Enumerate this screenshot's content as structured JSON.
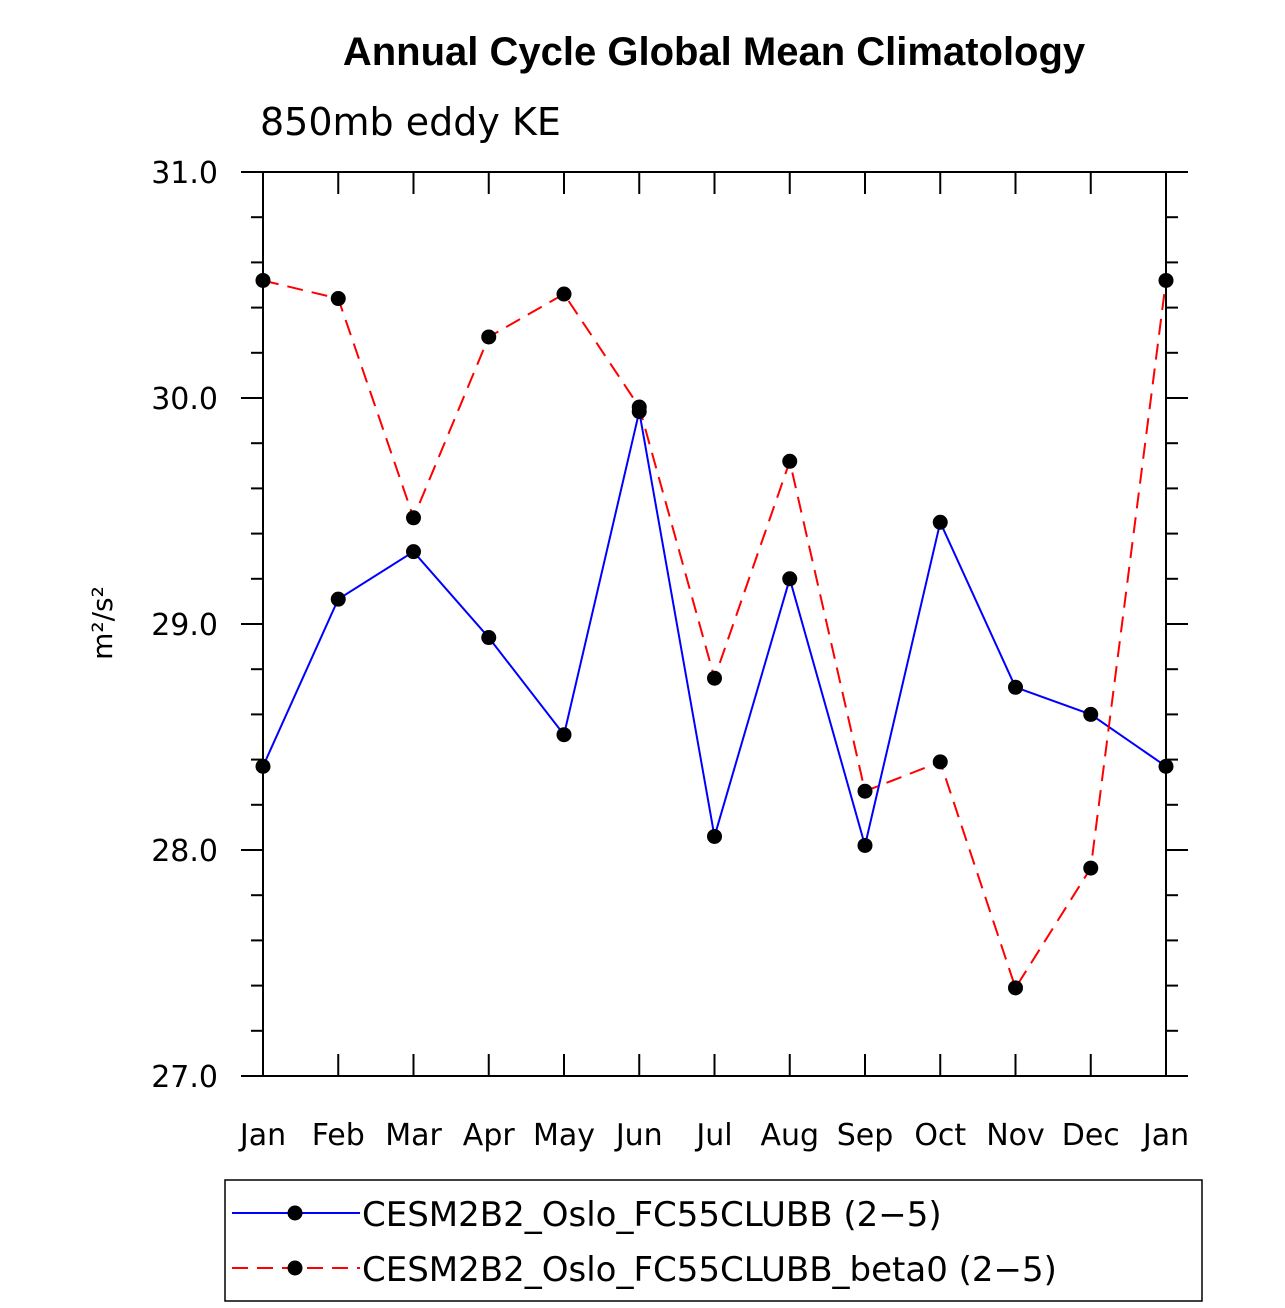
{
  "chart_data": {
    "type": "line",
    "title": "Annual Cycle Global Mean Climatology",
    "subtitle": "850mb eddy KE",
    "xlabel": "",
    "ylabel": "m²/s²",
    "ylim": [
      27.0,
      31.0
    ],
    "yticks": [
      "31.0",
      "30.0",
      "29.0",
      "28.0",
      "27.0"
    ],
    "categories": [
      "Jan",
      "Feb",
      "Mar",
      "Apr",
      "May",
      "Jun",
      "Jul",
      "Aug",
      "Sep",
      "Oct",
      "Nov",
      "Dec",
      "Jan"
    ],
    "series": [
      {
        "name": "CESM2B2_Oslo_FC55CLUBB (2−5)",
        "color": "#0000ff",
        "style": "solid",
        "values": [
          28.37,
          29.11,
          29.32,
          28.94,
          28.51,
          29.94,
          28.06,
          29.2,
          28.02,
          29.45,
          28.72,
          28.6,
          28.37
        ]
      },
      {
        "name": "CESM2B2_Oslo_FC55CLUBB_beta0 (2−5)",
        "color": "#ff0000",
        "style": "dashed",
        "values": [
          30.52,
          30.44,
          29.47,
          30.27,
          30.46,
          29.96,
          28.76,
          29.72,
          28.26,
          28.39,
          27.39,
          27.92,
          30.52
        ]
      }
    ],
    "legend": "bottom",
    "grid": false
  }
}
